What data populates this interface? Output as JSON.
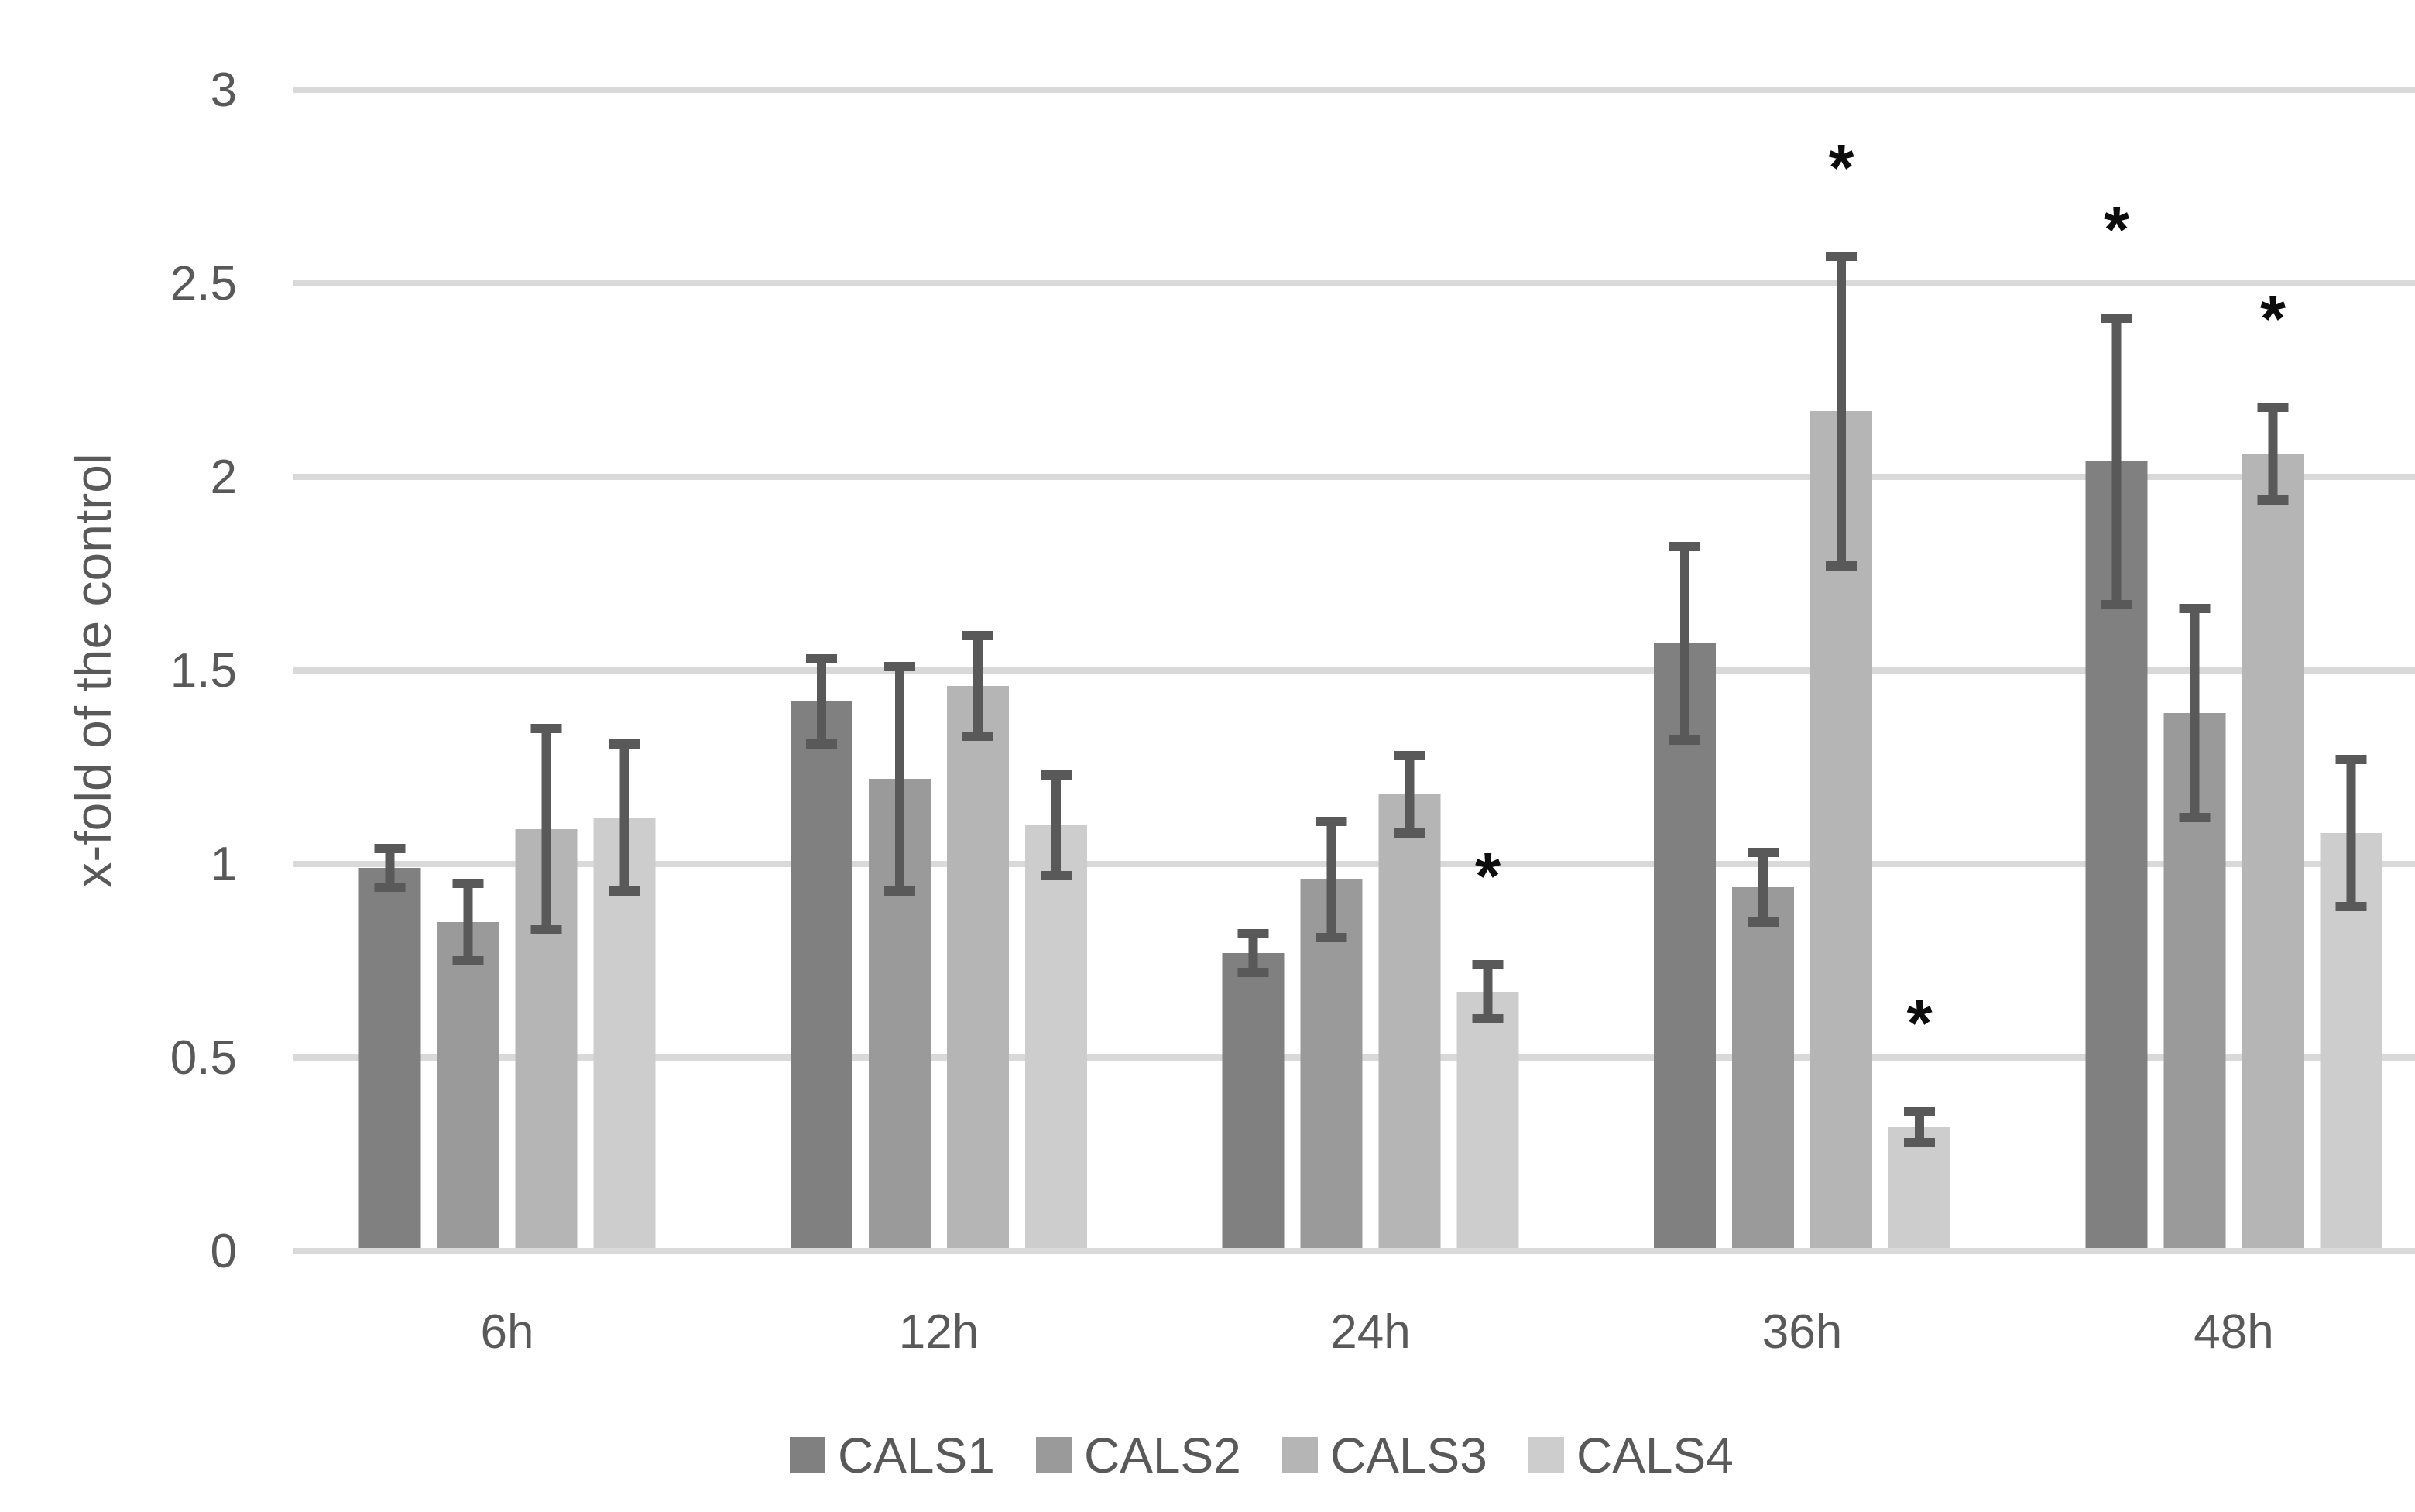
{
  "figure": {
    "background": "#ffffff",
    "significance_marker": "*"
  },
  "colors": {
    "grid": "#d9d9d9",
    "axis_text": "#595959",
    "error_bar": "#595959",
    "marker": "#0d0d0d"
  },
  "chart_data": {
    "type": "bar",
    "title": "",
    "xlabel": "",
    "ylabel": "x-fold of the control",
    "ylim": [
      0,
      3
    ],
    "grid": true,
    "legend_position": "bottom",
    "yticks": [
      {
        "value": 0,
        "label": "0"
      },
      {
        "value": 0.5,
        "label": "0.5"
      },
      {
        "value": 1,
        "label": "1"
      },
      {
        "value": 1.5,
        "label": "1.5"
      },
      {
        "value": 2,
        "label": "2"
      },
      {
        "value": 2.5,
        "label": "2.5"
      },
      {
        "value": 3,
        "label": "3"
      }
    ],
    "categories": [
      "6h",
      "12h",
      "24h",
      "36h",
      "48h"
    ],
    "significance_marker": "*",
    "series": [
      {
        "name": "CALS1",
        "color": "#808080",
        "values": [
          0.99,
          1.42,
          0.77,
          1.57,
          2.04
        ],
        "errors": [
          0.05,
          0.11,
          0.05,
          0.25,
          0.37
        ],
        "significant": [
          false,
          false,
          false,
          false,
          true
        ]
      },
      {
        "name": "CALS2",
        "color": "#9a9a9a",
        "values": [
          0.85,
          1.22,
          0.96,
          0.94,
          1.39
        ],
        "errors": [
          0.1,
          0.29,
          0.15,
          0.09,
          0.27
        ],
        "significant": [
          false,
          false,
          false,
          false,
          false
        ]
      },
      {
        "name": "CALS3",
        "color": "#b5b5b5",
        "values": [
          1.09,
          1.46,
          1.18,
          2.17,
          2.06
        ],
        "errors": [
          0.26,
          0.13,
          0.1,
          0.4,
          0.12
        ],
        "significant": [
          false,
          false,
          false,
          true,
          true
        ]
      },
      {
        "name": "CALS4",
        "color": "#cdcdcd",
        "values": [
          1.12,
          1.1,
          0.67,
          0.32,
          1.08
        ],
        "errors": [
          0.19,
          0.13,
          0.07,
          0.04,
          0.19
        ],
        "significant": [
          false,
          false,
          true,
          true,
          false
        ]
      }
    ]
  }
}
